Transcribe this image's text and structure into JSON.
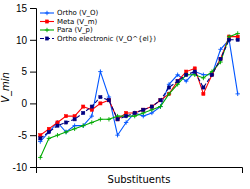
{
  "chart_data": {
    "type": "line",
    "xlabel": "Substituents",
    "ylabel": "V_min",
    "categories": [
      null,
      null,
      null,
      null,
      null,
      null,
      null,
      null,
      null,
      null,
      null,
      null,
      null,
      null,
      null,
      null,
      null,
      null,
      null,
      null,
      null,
      null,
      null,
      null
    ],
    "series": [
      {
        "name": "Ortho (V_O)",
        "color": "#0055FF",
        "marker": "plus",
        "line_style": "solid",
        "values": [
          -6.0,
          -4.5,
          -3.0,
          -4.5,
          -3.5,
          -3.5,
          -2.0,
          5.0,
          1.0,
          -5.0,
          -3.0,
          -1.5,
          -2.0,
          -1.5,
          -0.5,
          3.0,
          4.5,
          3.5,
          5.0,
          4.5,
          4.5,
          8.5,
          10.0,
          1.5
        ]
      },
      {
        "name": "Meta (V_m)",
        "color": "#FF0000",
        "marker": "square",
        "line_style": "solid",
        "values": [
          -5.0,
          -4.0,
          -3.0,
          -2.0,
          -2.0,
          -0.5,
          -1.0,
          0.0,
          0.5,
          -2.5,
          -1.5,
          -1.5,
          -1.0,
          -0.5,
          0.5,
          1.5,
          3.5,
          5.0,
          5.5,
          1.5,
          4.5,
          7.0,
          10.5,
          10.5
        ]
      },
      {
        "name": "Para (V_p)",
        "color": "#00AA00",
        "marker": "plus",
        "line_style": "solid",
        "values": [
          -8.5,
          -5.5,
          -5.0,
          -4.5,
          -4.0,
          -3.5,
          -3.0,
          -2.5,
          -2.5,
          -2.0,
          -2.0,
          -2.0,
          -1.5,
          -1.0,
          -0.5,
          1.5,
          3.0,
          4.5,
          4.5,
          4.0,
          5.0,
          6.5,
          10.5,
          11.0
        ]
      },
      {
        "name": "Ortho electronic (V_O^{el})",
        "color": "#000080",
        "marker": "square",
        "line_style": "dashed",
        "values": [
          -5.5,
          -4.5,
          -3.5,
          -3.0,
          -2.5,
          -1.5,
          -0.5,
          1.0,
          0.5,
          -2.5,
          -2.0,
          -1.5,
          -1.0,
          -0.5,
          0.5,
          2.5,
          3.5,
          4.5,
          5.0,
          2.5,
          4.5,
          7.0,
          10.0,
          10.0
        ]
      }
    ],
    "ylim": [
      -10,
      15
    ],
    "yticks": [
      -10,
      -5,
      0,
      5,
      10,
      15
    ],
    "grid": false,
    "legend": "upper left",
    "tick_labels": "y"
  }
}
